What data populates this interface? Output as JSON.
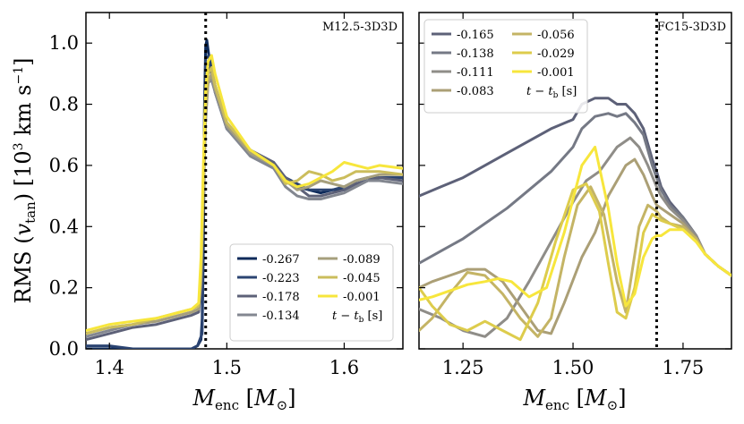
{
  "chart_data": [
    {
      "type": "line",
      "title": "M12.5-3D3D",
      "ylabel": "RMS (v_tan) [10^3 km s^-1]",
      "xlabel": "M_enc [M_⊙]",
      "xlim": [
        1.38,
        1.65
      ],
      "ylim": [
        0.0,
        1.1
      ],
      "xticks": [
        "1.4",
        "1.5",
        "1.6"
      ],
      "yticks": [
        "0.0",
        "0.2",
        "0.4",
        "0.6",
        "0.8",
        "1.0"
      ],
      "vline": 1.482,
      "legend_title": "t − t_b [s]",
      "legend_position": "lower-right",
      "series": [
        {
          "name": "-0.267",
          "color": "#0d2a5a",
          "x": [
            1.38,
            1.44,
            1.46,
            1.47,
            1.475,
            1.478,
            1.479,
            1.48,
            1.481,
            1.482,
            1.483,
            1.485,
            1.49,
            1.5,
            1.52,
            1.54,
            1.55,
            1.56,
            1.57,
            1.58,
            1.59,
            1.6,
            1.61,
            1.62,
            1.63,
            1.65
          ],
          "y": [
            0.0,
            0.0,
            0.0,
            0.0,
            0.01,
            0.03,
            0.1,
            0.4,
            0.8,
            0.99,
            1.01,
            0.95,
            0.84,
            0.72,
            0.64,
            0.6,
            0.56,
            0.53,
            0.52,
            0.51,
            0.52,
            0.52,
            0.54,
            0.55,
            0.56,
            0.56
          ]
        },
        {
          "name": "-0.223",
          "color": "#2b4472",
          "x": [
            1.38,
            1.4,
            1.42,
            1.44,
            1.46,
            1.47,
            1.475,
            1.479,
            1.48,
            1.481,
            1.482,
            1.485,
            1.49,
            1.5,
            1.52,
            1.54,
            1.55,
            1.56,
            1.57,
            1.58,
            1.59,
            1.6,
            1.61,
            1.62,
            1.63,
            1.65
          ],
          "y": [
            0.01,
            0.01,
            0.0,
            0.0,
            0.0,
            0.0,
            0.01,
            0.05,
            0.3,
            0.7,
            0.95,
            0.96,
            0.86,
            0.73,
            0.65,
            0.6,
            0.56,
            0.54,
            0.52,
            0.52,
            0.52,
            0.53,
            0.55,
            0.56,
            0.56,
            0.56
          ]
        },
        {
          "name": "-0.178",
          "color": "#5d6178",
          "x": [
            1.38,
            1.4,
            1.42,
            1.44,
            1.46,
            1.47,
            1.476,
            1.478,
            1.48,
            1.482,
            1.484,
            1.487,
            1.49,
            1.5,
            1.52,
            1.54,
            1.55,
            1.56,
            1.57,
            1.58,
            1.59,
            1.6,
            1.61,
            1.62,
            1.63,
            1.65
          ],
          "y": [
            0.03,
            0.05,
            0.07,
            0.08,
            0.1,
            0.11,
            0.12,
            0.2,
            0.5,
            0.8,
            0.92,
            0.9,
            0.86,
            0.74,
            0.65,
            0.61,
            0.56,
            0.53,
            0.5,
            0.5,
            0.51,
            0.52,
            0.54,
            0.55,
            0.56,
            0.55
          ]
        },
        {
          "name": "-0.134",
          "color": "#838790",
          "x": [
            1.38,
            1.4,
            1.42,
            1.44,
            1.46,
            1.47,
            1.476,
            1.478,
            1.48,
            1.482,
            1.484,
            1.487,
            1.49,
            1.5,
            1.52,
            1.54,
            1.55,
            1.56,
            1.57,
            1.58,
            1.59,
            1.6,
            1.61,
            1.62,
            1.63,
            1.65
          ],
          "y": [
            0.04,
            0.06,
            0.08,
            0.09,
            0.11,
            0.12,
            0.13,
            0.25,
            0.5,
            0.75,
            0.87,
            0.88,
            0.84,
            0.72,
            0.63,
            0.59,
            0.53,
            0.5,
            0.49,
            0.49,
            0.5,
            0.51,
            0.53,
            0.55,
            0.55,
            0.54
          ]
        },
        {
          "name": "-0.089",
          "color": "#a69f7d",
          "x": [
            1.38,
            1.4,
            1.42,
            1.44,
            1.46,
            1.47,
            1.476,
            1.478,
            1.48,
            1.482,
            1.484,
            1.487,
            1.49,
            1.5,
            1.52,
            1.54,
            1.55,
            1.56,
            1.57,
            1.58,
            1.59,
            1.6,
            1.61,
            1.62,
            1.63,
            1.65
          ],
          "y": [
            0.05,
            0.07,
            0.08,
            0.09,
            0.11,
            0.12,
            0.13,
            0.22,
            0.5,
            0.76,
            0.87,
            0.9,
            0.85,
            0.73,
            0.64,
            0.6,
            0.55,
            0.52,
            0.53,
            0.55,
            0.54,
            0.53,
            0.55,
            0.56,
            0.57,
            0.57
          ]
        },
        {
          "name": "-0.045",
          "color": "#cbbd5c",
          "x": [
            1.38,
            1.4,
            1.42,
            1.44,
            1.46,
            1.47,
            1.476,
            1.478,
            1.48,
            1.482,
            1.484,
            1.487,
            1.49,
            1.5,
            1.52,
            1.54,
            1.55,
            1.56,
            1.57,
            1.58,
            1.59,
            1.6,
            1.61,
            1.62,
            1.63,
            1.65
          ],
          "y": [
            0.05,
            0.07,
            0.08,
            0.1,
            0.12,
            0.13,
            0.14,
            0.25,
            0.55,
            0.8,
            0.9,
            0.92,
            0.86,
            0.74,
            0.65,
            0.6,
            0.54,
            0.55,
            0.58,
            0.57,
            0.55,
            0.56,
            0.58,
            0.58,
            0.58,
            0.57
          ]
        },
        {
          "name": "-0.001",
          "color": "#f7e63c",
          "x": [
            1.38,
            1.4,
            1.42,
            1.44,
            1.46,
            1.47,
            1.476,
            1.478,
            1.48,
            1.482,
            1.484,
            1.487,
            1.49,
            1.5,
            1.52,
            1.54,
            1.55,
            1.56,
            1.57,
            1.58,
            1.59,
            1.6,
            1.61,
            1.62,
            1.63,
            1.65
          ],
          "y": [
            0.06,
            0.08,
            0.09,
            0.1,
            0.12,
            0.13,
            0.15,
            0.3,
            0.6,
            0.85,
            0.94,
            0.96,
            0.9,
            0.76,
            0.65,
            0.6,
            0.55,
            0.53,
            0.54,
            0.56,
            0.58,
            0.61,
            0.6,
            0.59,
            0.6,
            0.59
          ]
        }
      ]
    },
    {
      "type": "line",
      "title": "FC15-3D3D",
      "xlabel": "M_enc [M_⊙]",
      "xlim": [
        1.15,
        1.86
      ],
      "ylim": [
        0.0,
        1.1
      ],
      "xticks": [
        "1.25",
        "1.50",
        "1.75"
      ],
      "yticks": [
        "0.0",
        "0.2",
        "0.4",
        "0.6",
        "0.8",
        "1.0"
      ],
      "vline": 1.69,
      "legend_title": "t − t_b [s]",
      "legend_position": "upper-left",
      "series": [
        {
          "name": "-0.165",
          "color": "#5d6178",
          "x": [
            1.15,
            1.2,
            1.25,
            1.3,
            1.35,
            1.4,
            1.45,
            1.5,
            1.52,
            1.55,
            1.58,
            1.6,
            1.62,
            1.64,
            1.66,
            1.68,
            1.69,
            1.7,
            1.72,
            1.75,
            1.78,
            1.8,
            1.83,
            1.86
          ],
          "y": [
            0.5,
            0.53,
            0.56,
            0.6,
            0.64,
            0.68,
            0.72,
            0.75,
            0.8,
            0.82,
            0.82,
            0.8,
            0.8,
            0.77,
            0.72,
            0.62,
            0.58,
            0.53,
            0.48,
            0.43,
            0.37,
            0.31,
            0.27,
            0.24
          ]
        },
        {
          "name": "-0.138",
          "color": "#757985",
          "x": [
            1.15,
            1.2,
            1.25,
            1.3,
            1.35,
            1.4,
            1.45,
            1.5,
            1.52,
            1.55,
            1.58,
            1.6,
            1.62,
            1.64,
            1.66,
            1.68,
            1.69,
            1.7,
            1.72,
            1.75,
            1.78,
            1.8,
            1.83,
            1.86
          ],
          "y": [
            0.28,
            0.32,
            0.36,
            0.41,
            0.46,
            0.52,
            0.58,
            0.66,
            0.72,
            0.76,
            0.77,
            0.76,
            0.77,
            0.74,
            0.7,
            0.6,
            0.56,
            0.52,
            0.47,
            0.43,
            0.37,
            0.31,
            0.27,
            0.24
          ]
        },
        {
          "name": "-0.111",
          "color": "#8f8d88",
          "x": [
            1.15,
            1.2,
            1.25,
            1.3,
            1.35,
            1.4,
            1.45,
            1.5,
            1.53,
            1.56,
            1.6,
            1.63,
            1.65,
            1.67,
            1.69,
            1.7,
            1.72,
            1.75,
            1.78,
            1.8,
            1.83,
            1.86
          ],
          "y": [
            0.13,
            0.1,
            0.06,
            0.04,
            0.1,
            0.22,
            0.35,
            0.48,
            0.55,
            0.58,
            0.66,
            0.69,
            0.66,
            0.6,
            0.53,
            0.5,
            0.46,
            0.42,
            0.37,
            0.31,
            0.27,
            0.24
          ]
        },
        {
          "name": "-0.083",
          "color": "#ab9f76",
          "x": [
            1.15,
            1.18,
            1.22,
            1.26,
            1.3,
            1.34,
            1.38,
            1.42,
            1.45,
            1.48,
            1.52,
            1.55,
            1.58,
            1.62,
            1.64,
            1.66,
            1.68,
            1.69,
            1.7,
            1.72,
            1.75,
            1.78,
            1.8,
            1.83,
            1.86
          ],
          "y": [
            0.2,
            0.22,
            0.24,
            0.26,
            0.26,
            0.22,
            0.14,
            0.06,
            0.05,
            0.15,
            0.3,
            0.38,
            0.5,
            0.6,
            0.62,
            0.57,
            0.5,
            0.47,
            0.46,
            0.44,
            0.41,
            0.36,
            0.31,
            0.27,
            0.24
          ]
        },
        {
          "name": "-0.056",
          "color": "#c4b465",
          "x": [
            1.15,
            1.18,
            1.22,
            1.26,
            1.3,
            1.34,
            1.38,
            1.42,
            1.45,
            1.48,
            1.51,
            1.54,
            1.57,
            1.6,
            1.62,
            1.65,
            1.67,
            1.69,
            1.7,
            1.72,
            1.75,
            1.78,
            1.8,
            1.83,
            1.86
          ],
          "y": [
            0.06,
            0.1,
            0.18,
            0.25,
            0.24,
            0.18,
            0.1,
            0.04,
            0.1,
            0.3,
            0.47,
            0.53,
            0.44,
            0.22,
            0.12,
            0.4,
            0.47,
            0.45,
            0.43,
            0.41,
            0.4,
            0.36,
            0.31,
            0.27,
            0.24
          ]
        },
        {
          "name": "-0.029",
          "color": "#ddcc4c",
          "x": [
            1.15,
            1.18,
            1.22,
            1.26,
            1.3,
            1.34,
            1.38,
            1.42,
            1.46,
            1.5,
            1.53,
            1.56,
            1.58,
            1.6,
            1.62,
            1.64,
            1.66,
            1.68,
            1.69,
            1.7,
            1.72,
            1.75,
            1.78,
            1.8,
            1.83,
            1.86
          ],
          "y": [
            0.2,
            0.14,
            0.08,
            0.06,
            0.09,
            0.06,
            0.03,
            0.15,
            0.35,
            0.52,
            0.54,
            0.45,
            0.28,
            0.12,
            0.1,
            0.2,
            0.38,
            0.44,
            0.43,
            0.42,
            0.41,
            0.39,
            0.35,
            0.31,
            0.27,
            0.24
          ]
        },
        {
          "name": "-0.001",
          "color": "#f7e63c",
          "x": [
            1.15,
            1.18,
            1.22,
            1.26,
            1.3,
            1.33,
            1.36,
            1.4,
            1.44,
            1.48,
            1.52,
            1.55,
            1.58,
            1.6,
            1.62,
            1.64,
            1.66,
            1.68,
            1.69,
            1.7,
            1.72,
            1.75,
            1.78,
            1.8,
            1.83,
            1.86
          ],
          "y": [
            0.16,
            0.17,
            0.19,
            0.21,
            0.22,
            0.23,
            0.22,
            0.17,
            0.2,
            0.38,
            0.6,
            0.66,
            0.46,
            0.28,
            0.14,
            0.18,
            0.3,
            0.36,
            0.37,
            0.37,
            0.39,
            0.39,
            0.35,
            0.31,
            0.27,
            0.24
          ]
        }
      ]
    }
  ]
}
